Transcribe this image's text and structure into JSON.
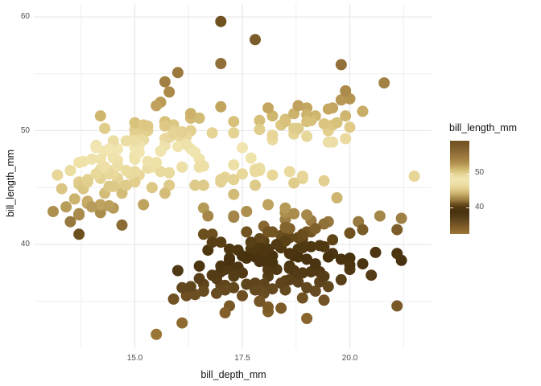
{
  "chart_data": {
    "type": "scatter",
    "title": "",
    "xlabel": "bill_depth_mm",
    "ylabel": "bill_length_mm",
    "grid": "on",
    "legend_position": "right",
    "xlim": [
      12.68,
      21.92
    ],
    "ylim": [
      30.7,
      61.1
    ],
    "x_ticks": [
      15.0,
      17.5,
      20.0
    ],
    "x_tick_labels": [
      "15.0",
      "17.5",
      "20.0"
    ],
    "x_minor_ticks": [
      13.75,
      16.25,
      18.75,
      21.25
    ],
    "y_ticks": [
      40,
      50,
      60
    ],
    "y_tick_labels": [
      "40",
      "50",
      "60"
    ],
    "y_minor_ticks": [
      35,
      45,
      55
    ],
    "color_scale": {
      "title": "bill_length_mm",
      "mapped_to": "bill_length_mm",
      "domain": [
        32.1,
        59.6
      ],
      "ticks": [
        50,
        40
      ],
      "tick_labels": [
        "50",
        "40"
      ],
      "stops": [
        [
          32.1,
          "#9a7637"
        ],
        [
          34,
          "#835f2b"
        ],
        [
          36,
          "#654a20"
        ],
        [
          37.5,
          "#513a15"
        ],
        [
          38.8,
          "#47310e"
        ],
        [
          40,
          "#523b12"
        ],
        [
          41,
          "#6f511f"
        ],
        [
          42,
          "#97783f"
        ],
        [
          43,
          "#b09351"
        ],
        [
          44,
          "#cbb26d"
        ],
        [
          45,
          "#dcc785"
        ],
        [
          46,
          "#e7d697"
        ],
        [
          47,
          "#eee1a8"
        ],
        [
          48.5,
          "#f1e5b1"
        ],
        [
          50,
          "#e3d08f"
        ],
        [
          51,
          "#d4bd76"
        ],
        [
          52,
          "#c3a660"
        ],
        [
          53,
          "#b2914e"
        ],
        [
          54,
          "#a48345"
        ],
        [
          55,
          "#9c793f"
        ],
        [
          56,
          "#8f6e38"
        ],
        [
          57,
          "#856431"
        ],
        [
          58,
          "#7c5b2b"
        ],
        [
          59.6,
          "#705120"
        ]
      ]
    },
    "grid_color_major": "#e5e5e5",
    "grid_color_minor": "#efefef",
    "point_radius_px": 7,
    "points": [
      [
        18.7,
        39.1
      ],
      [
        17.4,
        39.5
      ],
      [
        18.0,
        40.3
      ],
      [
        19.3,
        36.7
      ],
      [
        20.6,
        39.3
      ],
      [
        17.8,
        38.9
      ],
      [
        19.6,
        39.2
      ],
      [
        18.1,
        34.1
      ],
      [
        20.2,
        42.0
      ],
      [
        17.1,
        37.8
      ],
      [
        17.3,
        37.8
      ],
      [
        17.6,
        41.1
      ],
      [
        21.2,
        38.6
      ],
      [
        21.1,
        34.6
      ],
      [
        17.8,
        36.6
      ],
      [
        19.0,
        38.7
      ],
      [
        20.7,
        42.5
      ],
      [
        18.4,
        34.4
      ],
      [
        21.5,
        46.0
      ],
      [
        18.3,
        37.8
      ],
      [
        18.7,
        37.7
      ],
      [
        19.2,
        35.9
      ],
      [
        18.1,
        38.2
      ],
      [
        17.2,
        38.8
      ],
      [
        18.9,
        35.3
      ],
      [
        18.6,
        40.6
      ],
      [
        17.9,
        40.5
      ],
      [
        18.6,
        37.9
      ],
      [
        18.9,
        40.5
      ],
      [
        16.7,
        39.5
      ],
      [
        18.1,
        37.2
      ],
      [
        17.8,
        39.5
      ],
      [
        18.9,
        40.9
      ],
      [
        17.0,
        36.4
      ],
      [
        21.1,
        39.2
      ],
      [
        20.0,
        38.8
      ],
      [
        18.5,
        42.2
      ],
      [
        19.3,
        37.6
      ],
      [
        19.1,
        39.8
      ],
      [
        18.0,
        36.5
      ],
      [
        18.4,
        40.8
      ],
      [
        18.5,
        36.0
      ],
      [
        19.7,
        44.1
      ],
      [
        16.9,
        37.0
      ],
      [
        18.8,
        39.6
      ],
      [
        19.0,
        41.1
      ],
      [
        18.9,
        37.5
      ],
      [
        17.9,
        36.0
      ],
      [
        21.2,
        42.3
      ],
      [
        17.7,
        39.6
      ],
      [
        18.9,
        40.1
      ],
      [
        17.9,
        35.0
      ],
      [
        19.5,
        42.0
      ],
      [
        18.1,
        34.5
      ],
      [
        18.6,
        41.4
      ],
      [
        17.5,
        39.0
      ],
      [
        18.8,
        40.6
      ],
      [
        16.6,
        36.5
      ],
      [
        19.1,
        37.6
      ],
      [
        16.9,
        35.7
      ],
      [
        21.1,
        41.3
      ],
      [
        17.0,
        37.6
      ],
      [
        18.2,
        41.1
      ],
      [
        17.1,
        36.4
      ],
      [
        18.0,
        41.6
      ],
      [
        16.2,
        35.5
      ],
      [
        19.1,
        41.1
      ],
      [
        16.6,
        35.9
      ],
      [
        19.4,
        41.8
      ],
      [
        19.0,
        33.5
      ],
      [
        18.4,
        39.7
      ],
      [
        17.2,
        39.6
      ],
      [
        18.9,
        45.8
      ],
      [
        17.5,
        35.5
      ],
      [
        18.5,
        42.8
      ],
      [
        16.8,
        40.9
      ],
      [
        19.4,
        37.2
      ],
      [
        16.1,
        36.2
      ],
      [
        19.1,
        42.1
      ],
      [
        17.2,
        34.6
      ],
      [
        17.6,
        42.9
      ],
      [
        18.8,
        36.7
      ],
      [
        19.4,
        35.1
      ],
      [
        20.5,
        37.3
      ],
      [
        20.3,
        41.3
      ],
      [
        19.5,
        36.3
      ],
      [
        18.6,
        36.9
      ],
      [
        19.2,
        38.3
      ],
      [
        18.8,
        38.9
      ],
      [
        18.0,
        35.7
      ],
      [
        18.1,
        41.1
      ],
      [
        17.1,
        34.0
      ],
      [
        18.1,
        39.6
      ],
      [
        17.3,
        36.2
      ],
      [
        18.9,
        40.8
      ],
      [
        18.6,
        38.1
      ],
      [
        18.5,
        40.3
      ],
      [
        16.1,
        33.1
      ],
      [
        18.5,
        43.2
      ],
      [
        17.9,
        35.0
      ],
      [
        20.0,
        41.0
      ],
      [
        16.0,
        37.7
      ],
      [
        20.0,
        37.8
      ],
      [
        18.6,
        37.9
      ],
      [
        18.9,
        39.7
      ],
      [
        17.2,
        38.6
      ],
      [
        20.0,
        38.2
      ],
      [
        17.0,
        38.1
      ],
      [
        20.3,
        38.3
      ],
      [
        18.2,
        39.0
      ],
      [
        17.9,
        38.5
      ],
      [
        19.5,
        38.9
      ],
      [
        18.5,
        36.8
      ],
      [
        16.5,
        38.1
      ],
      [
        17.0,
        40.2
      ],
      [
        15.9,
        35.2
      ],
      [
        18.4,
        36.6
      ],
      [
        17.8,
        36.0
      ],
      [
        18.1,
        37.8
      ],
      [
        17.1,
        36.0
      ],
      [
        18.5,
        41.5
      ],
      [
        16.8,
        40.2
      ],
      [
        16.5,
        37.0
      ],
      [
        17.9,
        39.7
      ],
      [
        17.7,
        40.2
      ],
      [
        15.5,
        32.1
      ],
      [
        16.8,
        37.3
      ],
      [
        18.7,
        39.0
      ],
      [
        18.6,
        39.2
      ],
      [
        19.2,
        41.4
      ],
      [
        18.0,
        38.6
      ],
      [
        17.4,
        38.0
      ],
      [
        19.0,
        36.2
      ],
      [
        18.3,
        40.0
      ],
      [
        19.8,
        38.7
      ],
      [
        17.5,
        37.5
      ],
      [
        18.2,
        36.1
      ],
      [
        19.6,
        40.4
      ],
      [
        17.6,
        38.8
      ],
      [
        18.7,
        42.7
      ],
      [
        16.4,
        35.6
      ],
      [
        18.8,
        37.4
      ],
      [
        19.3,
        39.9
      ],
      [
        17.3,
        37.2
      ],
      [
        18.0,
        39.4
      ],
      [
        19.8,
        36.9
      ],
      [
        19.0,
        42.6
      ],
      [
        16.3,
        36.3
      ],
      [
        18.2,
        38.4
      ],
      [
        17.6,
        36.5
      ],
      [
        19.4,
        39.8
      ],
      [
        13.2,
        46.1
      ],
      [
        16.3,
        50.0
      ],
      [
        14.1,
        48.7
      ],
      [
        15.2,
        50.0
      ],
      [
        14.5,
        47.6
      ],
      [
        13.5,
        46.5
      ],
      [
        14.6,
        45.4
      ],
      [
        15.3,
        46.7
      ],
      [
        13.4,
        43.3
      ],
      [
        15.4,
        46.8
      ],
      [
        13.7,
        40.9
      ],
      [
        16.1,
        49.0
      ],
      [
        13.7,
        45.5
      ],
      [
        14.6,
        48.4
      ],
      [
        14.6,
        45.8
      ],
      [
        15.7,
        49.3
      ],
      [
        13.5,
        42.0
      ],
      [
        15.2,
        49.2
      ],
      [
        14.5,
        46.2
      ],
      [
        15.1,
        48.7
      ],
      [
        14.3,
        50.2
      ],
      [
        14.5,
        45.1
      ],
      [
        14.5,
        46.5
      ],
      [
        15.8,
        46.3
      ],
      [
        13.1,
        42.9
      ],
      [
        15.1,
        46.1
      ],
      [
        14.3,
        44.5
      ],
      [
        15.0,
        47.8
      ],
      [
        14.3,
        48.2
      ],
      [
        15.3,
        50.0
      ],
      [
        15.3,
        47.3
      ],
      [
        14.2,
        42.8
      ],
      [
        14.5,
        45.1
      ],
      [
        17.0,
        59.6
      ],
      [
        14.8,
        49.1
      ],
      [
        16.3,
        48.4
      ],
      [
        13.7,
        42.6
      ],
      [
        17.3,
        44.4
      ],
      [
        13.6,
        44.0
      ],
      [
        15.7,
        48.7
      ],
      [
        13.7,
        42.7
      ],
      [
        16.0,
        49.6
      ],
      [
        13.7,
        45.3
      ],
      [
        15.0,
        49.6
      ],
      [
        15.9,
        50.5
      ],
      [
        13.9,
        43.6
      ],
      [
        13.9,
        45.5
      ],
      [
        15.9,
        50.5
      ],
      [
        13.3,
        44.9
      ],
      [
        15.8,
        45.2
      ],
      [
        14.2,
        46.6
      ],
      [
        14.1,
        48.5
      ],
      [
        14.4,
        45.1
      ],
      [
        15.0,
        50.1
      ],
      [
        14.4,
        46.5
      ],
      [
        15.4,
        45.0
      ],
      [
        13.9,
        43.8
      ],
      [
        15.0,
        45.5
      ],
      [
        14.5,
        43.2
      ],
      [
        15.3,
        50.4
      ],
      [
        13.8,
        45.3
      ],
      [
        14.9,
        46.2
      ],
      [
        13.9,
        45.7
      ],
      [
        15.7,
        54.3
      ],
      [
        14.2,
        45.8
      ],
      [
        16.8,
        49.8
      ],
      [
        14.4,
        46.2
      ],
      [
        16.2,
        49.5
      ],
      [
        14.2,
        43.5
      ],
      [
        15.0,
        50.7
      ],
      [
        15.0,
        47.7
      ],
      [
        15.6,
        46.4
      ],
      [
        15.6,
        48.2
      ],
      [
        14.8,
        46.5
      ],
      [
        15.0,
        46.4
      ],
      [
        16.0,
        48.6
      ],
      [
        14.2,
        47.5
      ],
      [
        16.3,
        51.1
      ],
      [
        13.8,
        45.2
      ],
      [
        16.4,
        45.2
      ],
      [
        14.5,
        49.1
      ],
      [
        15.6,
        52.5
      ],
      [
        14.6,
        47.4
      ],
      [
        15.9,
        50.0
      ],
      [
        13.8,
        44.9
      ],
      [
        17.3,
        50.8
      ],
      [
        14.4,
        43.4
      ],
      [
        14.2,
        51.3
      ],
      [
        14.0,
        47.5
      ],
      [
        17.0,
        52.1
      ],
      [
        15.0,
        47.5
      ],
      [
        15.5,
        52.2
      ],
      [
        13.9,
        45.5
      ],
      [
        16.1,
        49.5
      ],
      [
        14.7,
        44.5
      ],
      [
        15.7,
        50.8
      ],
      [
        15.8,
        49.4
      ],
      [
        14.6,
        46.9
      ],
      [
        14.4,
        48.4
      ],
      [
        16.5,
        51.1
      ],
      [
        15.0,
        48.5
      ],
      [
        17.0,
        55.9
      ],
      [
        15.5,
        47.2
      ],
      [
        15.0,
        49.1
      ],
      [
        13.8,
        47.3
      ],
      [
        16.1,
        46.8
      ],
      [
        14.7,
        41.7
      ],
      [
        15.8,
        53.4
      ],
      [
        14.0,
        43.3
      ],
      [
        15.1,
        48.1
      ],
      [
        15.2,
        50.5
      ],
      [
        15.9,
        49.8
      ],
      [
        15.2,
        43.5
      ],
      [
        16.3,
        51.5
      ],
      [
        14.1,
        46.2
      ],
      [
        16.0,
        55.1
      ],
      [
        15.7,
        44.5
      ],
      [
        16.2,
        48.8
      ],
      [
        13.7,
        47.2
      ],
      [
        14.3,
        46.8
      ],
      [
        15.7,
        50.4
      ],
      [
        14.8,
        45.2
      ],
      [
        16.1,
        49.9
      ],
      [
        17.9,
        46.5
      ],
      [
        19.5,
        50.0
      ],
      [
        19.2,
        51.3
      ],
      [
        18.7,
        45.4
      ],
      [
        19.8,
        52.7
      ],
      [
        17.8,
        45.2
      ],
      [
        18.2,
        46.1
      ],
      [
        18.2,
        51.3
      ],
      [
        18.9,
        46.0
      ],
      [
        19.9,
        51.3
      ],
      [
        17.8,
        46.6
      ],
      [
        20.3,
        51.7
      ],
      [
        17.3,
        47.0
      ],
      [
        18.1,
        52.0
      ],
      [
        17.1,
        45.9
      ],
      [
        19.6,
        50.5
      ],
      [
        20.0,
        50.3
      ],
      [
        17.8,
        58.0
      ],
      [
        18.6,
        46.4
      ],
      [
        18.2,
        49.2
      ],
      [
        17.3,
        42.4
      ],
      [
        17.5,
        48.5
      ],
      [
        16.6,
        43.2
      ],
      [
        19.4,
        50.6
      ],
      [
        17.9,
        46.7
      ],
      [
        19.0,
        52.0
      ],
      [
        18.4,
        50.5
      ],
      [
        19.0,
        49.5
      ],
      [
        17.8,
        46.4
      ],
      [
        20.0,
        52.8
      ],
      [
        16.6,
        40.9
      ],
      [
        20.8,
        54.2
      ],
      [
        16.7,
        42.5
      ],
      [
        18.5,
        51.0
      ],
      [
        18.7,
        49.7
      ],
      [
        16.5,
        47.5
      ],
      [
        17.7,
        47.6
      ],
      [
        19.6,
        52.0
      ],
      [
        16.6,
        46.9
      ],
      [
        19.9,
        53.5
      ],
      [
        19.5,
        49.0
      ],
      [
        17.5,
        46.2
      ],
      [
        19.1,
        50.9
      ],
      [
        17.0,
        45.5
      ],
      [
        17.9,
        50.9
      ],
      [
        18.5,
        50.8
      ],
      [
        17.9,
        50.1
      ],
      [
        19.6,
        49.0
      ],
      [
        18.7,
        51.5
      ],
      [
        17.3,
        49.8
      ],
      [
        16.4,
        48.1
      ],
      [
        19.0,
        51.4
      ],
      [
        17.3,
        45.7
      ],
      [
        19.7,
        50.7
      ],
      [
        17.3,
        42.5
      ],
      [
        18.8,
        52.2
      ],
      [
        16.6,
        45.2
      ],
      [
        19.9,
        49.3
      ],
      [
        18.8,
        50.2
      ],
      [
        19.4,
        45.6
      ],
      [
        19.5,
        51.9
      ],
      [
        16.5,
        46.8
      ],
      [
        17.0,
        45.7
      ],
      [
        19.8,
        55.8
      ],
      [
        18.1,
        43.5
      ],
      [
        18.2,
        49.6
      ],
      [
        19.0,
        50.8
      ],
      [
        18.7,
        50.2
      ]
    ]
  }
}
